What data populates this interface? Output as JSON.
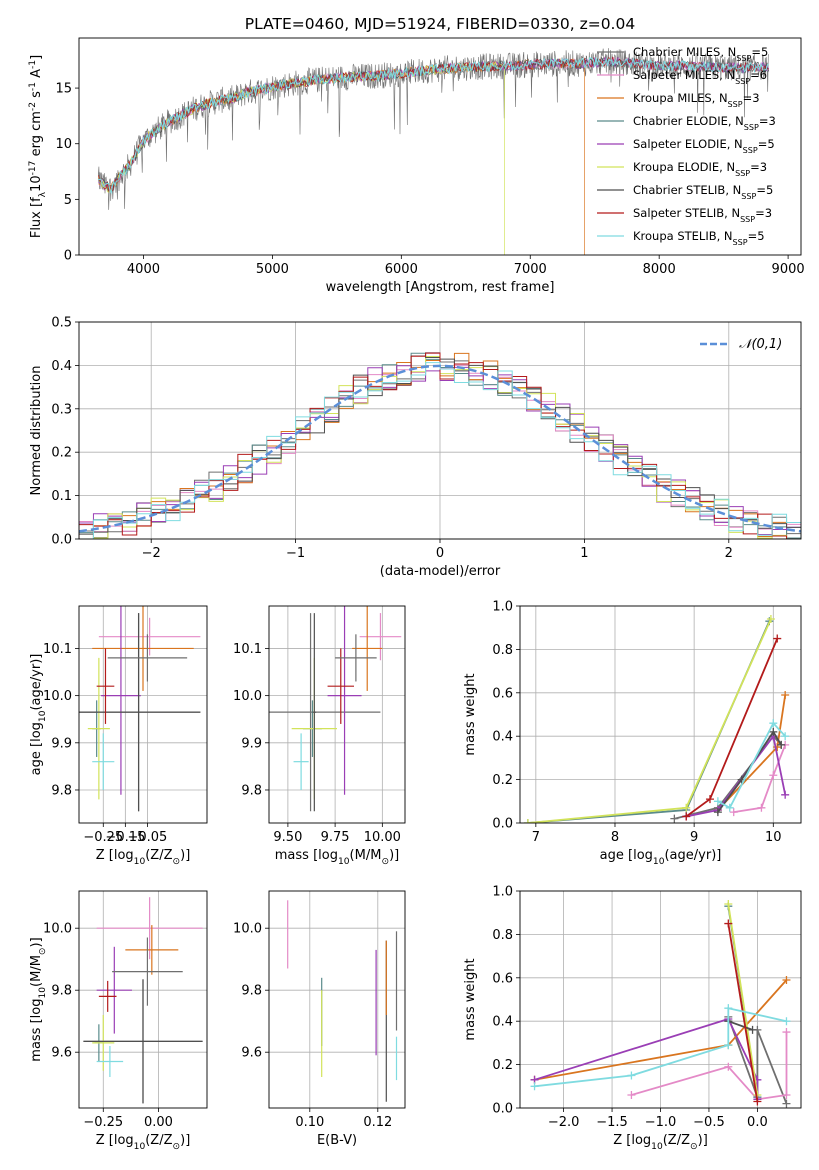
{
  "title": "PLATE=0460, MJD=51924, FIBERID=0330, z=0.04",
  "models": [
    {
      "name": "Chabrier MILES, N$_{SSP}$=5",
      "short": "Chabrier MILES",
      "nssp": "5",
      "color": "#6f6f6f"
    },
    {
      "name": "Salpeter MILES, N$_{SSP}$=6",
      "short": "Salpeter MILES",
      "nssp": "6",
      "color": "#e48ac7"
    },
    {
      "name": "Kroupa MILES, N$_{SSP}$=3",
      "short": "Kroupa MILES",
      "nssp": "3",
      "color": "#d9751f"
    },
    {
      "name": "Chabrier ELODIE, N$_{SSP}$=3",
      "short": "Chabrier ELODIE",
      "nssp": "3",
      "color": "#5a8b8b"
    },
    {
      "name": "Salpeter ELODIE, N$_{SSP}$=5",
      "short": "Salpeter ELODIE",
      "nssp": "5",
      "color": "#9a3eb5"
    },
    {
      "name": "Kroupa ELODIE, N$_{SSP}$=3",
      "short": "Kroupa ELODIE",
      "nssp": "3",
      "color": "#d2e35a"
    },
    {
      "name": "Chabrier STELIB, N$_{SSP}$=5",
      "short": "Chabrier STELIB",
      "nssp": "5",
      "color": "#4f4f4f"
    },
    {
      "name": "Salpeter STELIB, N$_{SSP}$=3",
      "short": "Salpeter STELIB",
      "nssp": "3",
      "color": "#b31b1b"
    },
    {
      "name": "Kroupa STELIB, N$_{SSP}$=5",
      "short": "Kroupa STELIB",
      "nssp": "5",
      "color": "#7fdbe0"
    }
  ],
  "chart_data": [
    {
      "id": "spectrum",
      "type": "line",
      "xlabel": "wavelength [Angstrom, rest frame]",
      "ylabel": "Flux [f$_\\lambda$10$^{-17}$ erg cm$^{-2}$ s$^{-1}$ A$^{-1}$]",
      "xlim": [
        3500,
        9100
      ],
      "ylim": [
        0,
        19.5
      ],
      "xticks": [
        4000,
        5000,
        6000,
        7000,
        8000,
        9000
      ],
      "yticks": [
        0,
        5,
        10,
        15
      ],
      "x": [
        3650,
        3700,
        3750,
        3800,
        3900,
        4000,
        4100,
        4200,
        4300,
        4400,
        4500,
        4600,
        4700,
        4800,
        4900,
        5000,
        5200,
        5400,
        5600,
        5800,
        6000,
        6200,
        6400,
        6600,
        6800,
        7000,
        7200,
        7400,
        7600,
        7800,
        8000,
        8200,
        8400,
        8600,
        8800
      ],
      "y": [
        6.8,
        6.2,
        6.0,
        6.8,
        8.2,
        10.3,
        11.2,
        12.0,
        12.6,
        13.2,
        13.6,
        13.9,
        14.1,
        14.6,
        14.8,
        15.1,
        15.5,
        15.8,
        16.0,
        16.1,
        16.3,
        16.6,
        16.8,
        16.9,
        17.0,
        17.1,
        17.2,
        17.2,
        17.4,
        17.2,
        17.0,
        17.0,
        16.9,
        16.8,
        16.9
      ],
      "dropouts": [
        {
          "model": "Kroupa ELODIE",
          "x": 6800
        },
        {
          "model": "Kroupa MILES",
          "x": 7420
        }
      ],
      "grid": false,
      "legend": "top-right"
    },
    {
      "id": "residuals",
      "type": "bar",
      "xlabel": "(data-model)/error",
      "ylabel": "Normed distribution",
      "xlim": [
        -2.5,
        2.5
      ],
      "ylim": [
        0,
        0.5
      ],
      "xticks": [
        -2,
        -1,
        0,
        1,
        2
      ],
      "xtick_labels": [
        "−2",
        "−1",
        "0",
        "1",
        "2"
      ],
      "yticks": [
        0,
        0.1,
        0.2,
        0.3,
        0.4,
        0.5
      ],
      "bin_width": 0.1,
      "reference": {
        "name": "$\\mathcal{N}(0,1)$",
        "mu": 0,
        "sigma": 1,
        "color": "#5b8fd8"
      },
      "grid": true,
      "legend": "top-right"
    },
    {
      "id": "age-Z",
      "type": "scatter",
      "xlabel": "Z [log$_{10}$(Z/Z$_\\odot$)]",
      "ylabel": "age  [log$_{10}$(age/yr)]",
      "xlim": [
        -0.36,
        0.22
      ],
      "ylim": [
        9.73,
        10.19
      ],
      "xticks": [
        -0.25,
        -0.15,
        -0.05
      ],
      "xtick_labels": [
        "−0.25",
        "−0.15",
        "−0.05"
      ],
      "yticks": [
        9.8,
        9.9,
        10.0,
        10.1
      ],
      "grid": true,
      "points": [
        {
          "model": "Chabrier MILES",
          "x": -0.09,
          "xerr": 0.28,
          "y": 9.965,
          "yerr": 0.21
        },
        {
          "model": "Salpeter MILES",
          "x": -0.04,
          "xerr": 0.23,
          "y": 10.125,
          "yerr": 0.04
        },
        {
          "model": "Kroupa MILES",
          "x": -0.07,
          "xerr": 0.23,
          "y": 10.1,
          "yerr": 0.09
        },
        {
          "model": "Chabrier ELODIE",
          "x": -0.28,
          "xerr": 0.02,
          "y": 9.93,
          "yerr": 0.06
        },
        {
          "model": "Salpeter ELODIE",
          "x": -0.17,
          "xerr": 0.09,
          "y": 10.0,
          "yerr": 0.21
        },
        {
          "model": "Kroupa ELODIE",
          "x": -0.27,
          "xerr": 0.05,
          "y": 9.93,
          "yerr": 0.15
        },
        {
          "model": "Chabrier STELIB",
          "x": -0.09,
          "xerr": 0.28,
          "y": 9.965,
          "yerr": 0.21
        },
        {
          "model": "Salpeter STELIB",
          "x": -0.24,
          "xerr": 0.04,
          "y": 10.02,
          "yerr": 0.08
        },
        {
          "model": "Kroupa STELIB",
          "x": -0.25,
          "xerr": 0.05,
          "y": 9.86,
          "yerr": 0.06
        },
        {
          "model": "Chabrier MILES",
          "x": -0.05,
          "xerr": 0.18,
          "y": 10.08,
          "yerr": 0.05
        }
      ]
    },
    {
      "id": "age-mass",
      "type": "scatter",
      "xlabel": "mass [log$_{10}$(M/M$_\\odot$)]",
      "ylabel": "",
      "xlim": [
        9.4,
        10.12
      ],
      "ylim": [
        9.73,
        10.19
      ],
      "xticks": [
        9.5,
        9.75,
        10.0
      ],
      "xtick_labels": [
        "9.50",
        "9.75",
        "10.00"
      ],
      "yticks": [
        9.8,
        9.9,
        10.0,
        10.1
      ],
      "grid": true,
      "points": [
        {
          "model": "Chabrier MILES",
          "x": 9.62,
          "xerr": 0.37,
          "y": 9.965,
          "yerr": 0.21
        },
        {
          "model": "Salpeter MILES",
          "x": 9.99,
          "xerr": 0.11,
          "y": 10.125,
          "yerr": 0.05
        },
        {
          "model": "Kroupa MILES",
          "x": 9.92,
          "xerr": 0.08,
          "y": 10.1,
          "yerr": 0.09
        },
        {
          "model": "Chabrier ELODIE",
          "x": 9.63,
          "xerr": 0.05,
          "y": 9.93,
          "yerr": 0.06
        },
        {
          "model": "Salpeter ELODIE",
          "x": 9.8,
          "xerr": 0.09,
          "y": 10.0,
          "yerr": 0.21
        },
        {
          "model": "Kroupa ELODIE",
          "x": 9.64,
          "xerr": 0.12,
          "y": 9.93,
          "yerr": 0.15
        },
        {
          "model": "Chabrier STELIB",
          "x": 9.64,
          "xerr": 0.01,
          "y": 9.965,
          "yerr": 0.21
        },
        {
          "model": "Salpeter STELIB",
          "x": 9.78,
          "xerr": 0.07,
          "y": 10.02,
          "yerr": 0.08
        },
        {
          "model": "Kroupa STELIB",
          "x": 9.57,
          "xerr": 0.04,
          "y": 9.86,
          "yerr": 0.06
        },
        {
          "model": "Chabrier MILES",
          "x": 9.86,
          "xerr": 0.11,
          "y": 10.08,
          "yerr": 0.05
        }
      ]
    },
    {
      "id": "weight-age",
      "type": "line",
      "xlabel": "age  [log$_{10}$(age/yr)]",
      "ylabel": "mass weight",
      "xlim": [
        6.8,
        10.35
      ],
      "ylim": [
        0,
        1.0
      ],
      "xticks": [
        7,
        8,
        9,
        10
      ],
      "yticks": [
        0,
        0.2,
        0.4,
        0.6,
        0.8,
        1.0
      ],
      "grid": true,
      "series": [
        {
          "model": "Chabrier MILES",
          "x": [
            8.75,
            9.3,
            10.0,
            10.1
          ],
          "y": [
            0.02,
            0.07,
            0.4,
            0.36
          ]
        },
        {
          "model": "Salpeter MILES",
          "x": [
            9.5,
            9.85,
            10.0,
            10.15
          ],
          "y": [
            0.05,
            0.07,
            0.22,
            0.36
          ]
        },
        {
          "model": "Kroupa MILES",
          "x": [
            9.3,
            10.05,
            10.15
          ],
          "y": [
            0.06,
            0.35,
            0.59
          ]
        },
        {
          "model": "Chabrier ELODIE",
          "x": [
            6.9,
            8.9,
            9.95
          ],
          "y": [
            0.0,
            0.06,
            0.93
          ]
        },
        {
          "model": "Salpeter ELODIE",
          "x": [
            8.9,
            9.3,
            10.0,
            10.15
          ],
          "y": [
            0.03,
            0.06,
            0.4,
            0.13
          ]
        },
        {
          "model": "Kroupa ELODIE",
          "x": [
            6.9,
            8.9,
            9.97
          ],
          "y": [
            0.0,
            0.07,
            0.94
          ]
        },
        {
          "model": "Chabrier STELIB",
          "x": [
            9.3,
            9.6,
            10.0,
            10.1
          ],
          "y": [
            0.05,
            0.2,
            0.42,
            0.36
          ]
        },
        {
          "model": "Salpeter STELIB",
          "x": [
            8.9,
            9.2,
            10.05
          ],
          "y": [
            0.03,
            0.11,
            0.85
          ]
        },
        {
          "model": "Kroupa STELIB",
          "x": [
            9.3,
            9.45,
            10.0,
            10.15
          ],
          "y": [
            0.1,
            0.07,
            0.46,
            0.4
          ]
        }
      ]
    },
    {
      "id": "mass-Z",
      "type": "scatter",
      "xlabel": "Z [log$_{10}$(Z/Z$_\\odot$)]",
      "ylabel": "mass [log$_{10}$(M/M$_\\odot$)]",
      "xlim": [
        -0.36,
        0.22
      ],
      "ylim": [
        9.42,
        10.12
      ],
      "xticks": [
        -0.25,
        0.0
      ],
      "xtick_labels": [
        "−0.25",
        "0.00"
      ],
      "yticks": [
        9.6,
        9.8,
        10.0
      ],
      "grid": true,
      "points": [
        {
          "model": "Chabrier MILES",
          "x": -0.07,
          "xerr": 0.27,
          "y": 9.635,
          "yerr": 0.2
        },
        {
          "model": "Salpeter MILES",
          "x": -0.04,
          "xerr": 0.24,
          "y": 10.0,
          "yerr": 0.1
        },
        {
          "model": "Kroupa MILES",
          "x": -0.03,
          "xerr": 0.12,
          "y": 9.93,
          "yerr": 0.08
        },
        {
          "model": "Chabrier ELODIE",
          "x": -0.27,
          "xerr": 0.02,
          "y": 9.63,
          "yerr": 0.06
        },
        {
          "model": "Salpeter ELODIE",
          "x": -0.2,
          "xerr": 0.08,
          "y": 9.8,
          "yerr": 0.14
        },
        {
          "model": "Kroupa ELODIE",
          "x": -0.25,
          "xerr": 0.05,
          "y": 9.63,
          "yerr": 0.09
        },
        {
          "model": "Chabrier STELIB",
          "x": -0.07,
          "xerr": 0.27,
          "y": 9.635,
          "yerr": 0.2
        },
        {
          "model": "Salpeter STELIB",
          "x": -0.23,
          "xerr": 0.04,
          "y": 9.78,
          "yerr": 0.05
        },
        {
          "model": "Kroupa STELIB",
          "x": -0.22,
          "xerr": 0.06,
          "y": 9.57,
          "yerr": 0.05
        },
        {
          "model": "Chabrier MILES",
          "x": -0.05,
          "xerr": 0.16,
          "y": 9.86,
          "yerr": 0.11
        }
      ]
    },
    {
      "id": "mass-ebv",
      "type": "scatter",
      "xlabel": "E(B-V)",
      "ylabel": "",
      "xlim": [
        0.088,
        0.128
      ],
      "ylim": [
        9.42,
        10.12
      ],
      "xticks": [
        0.1,
        0.12
      ],
      "xtick_labels": [
        "0.10",
        "0.12"
      ],
      "yticks": [
        9.6,
        9.8,
        10.0
      ],
      "grid": true,
      "points": [
        {
          "model": "Salpeter MILES",
          "x": 0.0935,
          "y": 9.98,
          "yerr": 0.11
        },
        {
          "model": "Chabrier ELODIE",
          "x": 0.1035,
          "y": 9.73,
          "yerr": 0.11
        },
        {
          "model": "Kroupa ELODIE",
          "x": 0.1035,
          "y": 9.66,
          "yerr": 0.14
        },
        {
          "model": "Salpeter ELODIE",
          "x": 0.1195,
          "y": 9.76,
          "yerr": 0.17
        },
        {
          "model": "Chabrier STELIB",
          "x": 0.1225,
          "y": 9.7,
          "yerr": 0.26
        },
        {
          "model": "Kroupa MILES",
          "x": 0.1225,
          "y": 9.84,
          "yerr": 0.12
        },
        {
          "model": "Chabrier MILES",
          "x": 0.1255,
          "y": 9.83,
          "yerr": 0.16
        },
        {
          "model": "Kroupa STELIB",
          "x": 0.1255,
          "y": 9.58,
          "yerr": 0.07
        }
      ]
    },
    {
      "id": "weight-Z",
      "type": "line",
      "xlabel": "Z [log$_{10}$(Z/Z$_\\odot$)]",
      "ylabel": "mass weight",
      "xlim": [
        -2.45,
        0.45
      ],
      "ylim": [
        0,
        1.0
      ],
      "xticks": [
        -2.0,
        -1.5,
        -1.0,
        -0.5,
        0.0
      ],
      "xtick_labels": [
        "−2.0",
        "−1.5",
        "−1.0",
        "−0.5",
        "0.0"
      ],
      "yticks": [
        0,
        0.2,
        0.4,
        0.6,
        0.8,
        1.0
      ],
      "grid": true,
      "series": [
        {
          "model": "Chabrier MILES",
          "x": [
            -0.3,
            0.0,
            0.0,
            0.3
          ],
          "y": [
            0.42,
            0.05,
            0.36,
            0.02
          ]
        },
        {
          "model": "Salpeter MILES",
          "x": [
            -1.3,
            -0.3,
            0.0,
            0.3,
            0.3
          ],
          "y": [
            0.06,
            0.19,
            0.04,
            0.06,
            0.35
          ]
        },
        {
          "model": "Kroupa MILES",
          "x": [
            -2.3,
            -0.3,
            0.3
          ],
          "y": [
            0.13,
            0.29,
            0.59
          ]
        },
        {
          "model": "Chabrier ELODIE",
          "x": [
            -0.3,
            0.0
          ],
          "y": [
            0.93,
            0.05
          ]
        },
        {
          "model": "Salpeter ELODIE",
          "x": [
            -2.3,
            -0.3,
            0.0,
            0.0
          ],
          "y": [
            0.13,
            0.41,
            0.13,
            0.04
          ]
        },
        {
          "model": "Kroupa ELODIE",
          "x": [
            -0.3,
            0.0
          ],
          "y": [
            0.94,
            0.06
          ]
        },
        {
          "model": "Chabrier STELIB",
          "x": [
            -0.3,
            -0.05
          ],
          "y": [
            0.4,
            0.36
          ]
        },
        {
          "model": "Salpeter STELIB",
          "x": [
            -0.3,
            0.0
          ],
          "y": [
            0.85,
            0.03
          ]
        },
        {
          "model": "Kroupa STELIB",
          "x": [
            -2.3,
            -1.3,
            -0.3,
            -0.3,
            0.3
          ],
          "y": [
            0.1,
            0.15,
            0.29,
            0.46,
            0.4
          ]
        }
      ]
    }
  ]
}
